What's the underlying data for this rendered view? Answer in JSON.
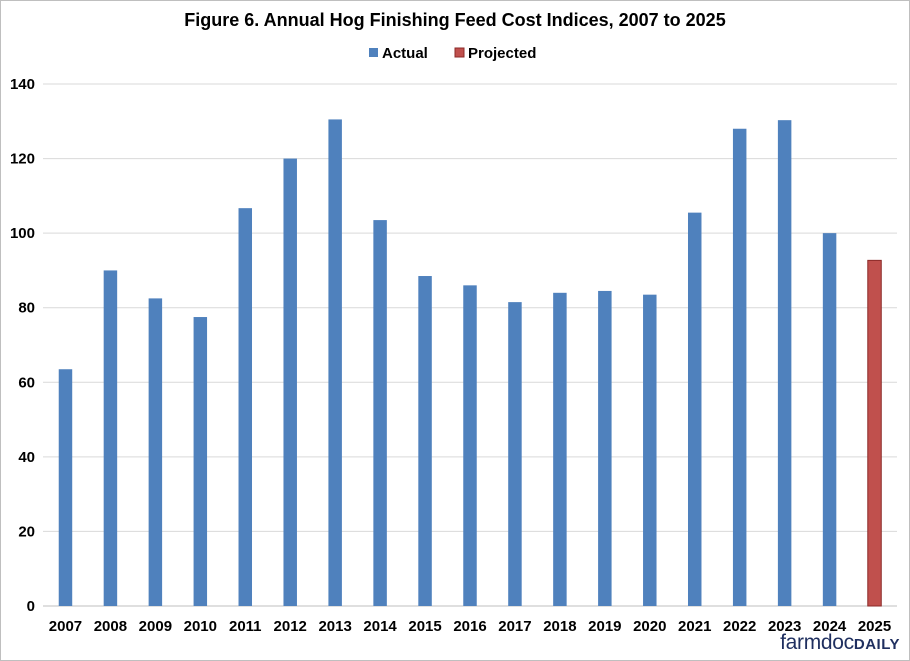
{
  "chart_data": {
    "type": "bar",
    "title": "Figure 6.  Annual Hog Finishing Feed Cost Indices, 2007 to 2025",
    "xlabel": "",
    "ylabel": "",
    "ylim": [
      0,
      140
    ],
    "yticks": [
      0,
      20,
      40,
      60,
      80,
      100,
      120,
      140
    ],
    "grid": true,
    "legend_position": "top-center",
    "categories": [
      "2007",
      "2008",
      "2009",
      "2010",
      "2011",
      "2012",
      "2013",
      "2014",
      "2015",
      "2016",
      "2017",
      "2018",
      "2019",
      "2020",
      "2021",
      "2022",
      "2023",
      "2024",
      "2025"
    ],
    "series": [
      {
        "name": "Actual",
        "color": "#4f81bd",
        "values": [
          63.5,
          90,
          82.5,
          77.5,
          106.7,
          120,
          130.5,
          103.5,
          88.5,
          86,
          81.5,
          84,
          84.5,
          83.5,
          105.5,
          128,
          130.3,
          100,
          null
        ]
      },
      {
        "name": "Projected",
        "color": "#c0504d",
        "values": [
          null,
          null,
          null,
          null,
          null,
          null,
          null,
          null,
          null,
          null,
          null,
          null,
          null,
          null,
          null,
          null,
          null,
          null,
          92.7
        ]
      }
    ]
  },
  "logo": {
    "part1": "farmdoc",
    "part2": "DAILY"
  }
}
